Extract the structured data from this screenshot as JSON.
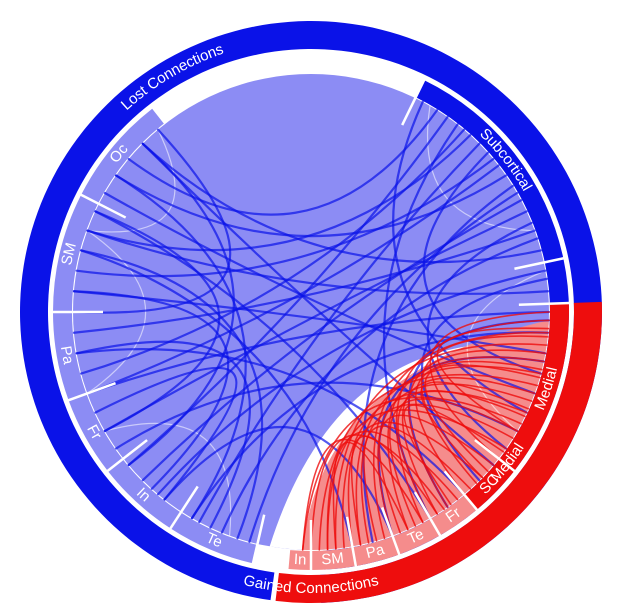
{
  "colors": {
    "lost": "#0a12e8",
    "lost_light": "#8c8cf4",
    "gained": "#ee0d0d",
    "gained_light": "#f58c8c",
    "divider": "#ffffff"
  },
  "outer_groups": [
    {
      "id": "lost",
      "label": "Lost Connections",
      "start_deg": 182,
      "end_deg": 267,
      "color": "#0a12e8"
    },
    {
      "id": "gained",
      "label": "Gained Connections",
      "start_deg": 90,
      "end_deg": 180,
      "color": "#ee0d0d"
    }
  ],
  "lost_segments": [
    {
      "label": "Subcortical",
      "start_deg": -64,
      "end_deg": -12
    },
    {
      "label": "Medial",
      "start_deg": -12,
      "end_deg": 87
    },
    {
      "label": "Oc",
      "start_deg": 207,
      "end_deg": 232
    },
    {
      "label": "SM",
      "start_deg": 180,
      "end_deg": 207
    },
    {
      "label": "Pa",
      "start_deg": 160,
      "end_deg": 180
    },
    {
      "label": "Fr",
      "start_deg": 142,
      "end_deg": 160
    },
    {
      "label": "In",
      "start_deg": 123,
      "end_deg": 142
    },
    {
      "label": "Te",
      "start_deg": 103,
      "end_deg": 123
    }
  ],
  "gained_segments": [
    {
      "label": "Medial",
      "start_deg": -2,
      "end_deg": 38
    },
    {
      "label": "SC",
      "start_deg": 38,
      "end_deg": 50
    },
    {
      "label": "Fr",
      "start_deg": 50,
      "end_deg": 60
    },
    {
      "label": "Te",
      "start_deg": 60,
      "end_deg": 70
    },
    {
      "label": "Pa",
      "start_deg": 70,
      "end_deg": 80
    },
    {
      "label": "SM",
      "start_deg": 80,
      "end_deg": 90
    },
    {
      "label": "In",
      "start_deg": 90,
      "end_deg": 95
    }
  ]
}
